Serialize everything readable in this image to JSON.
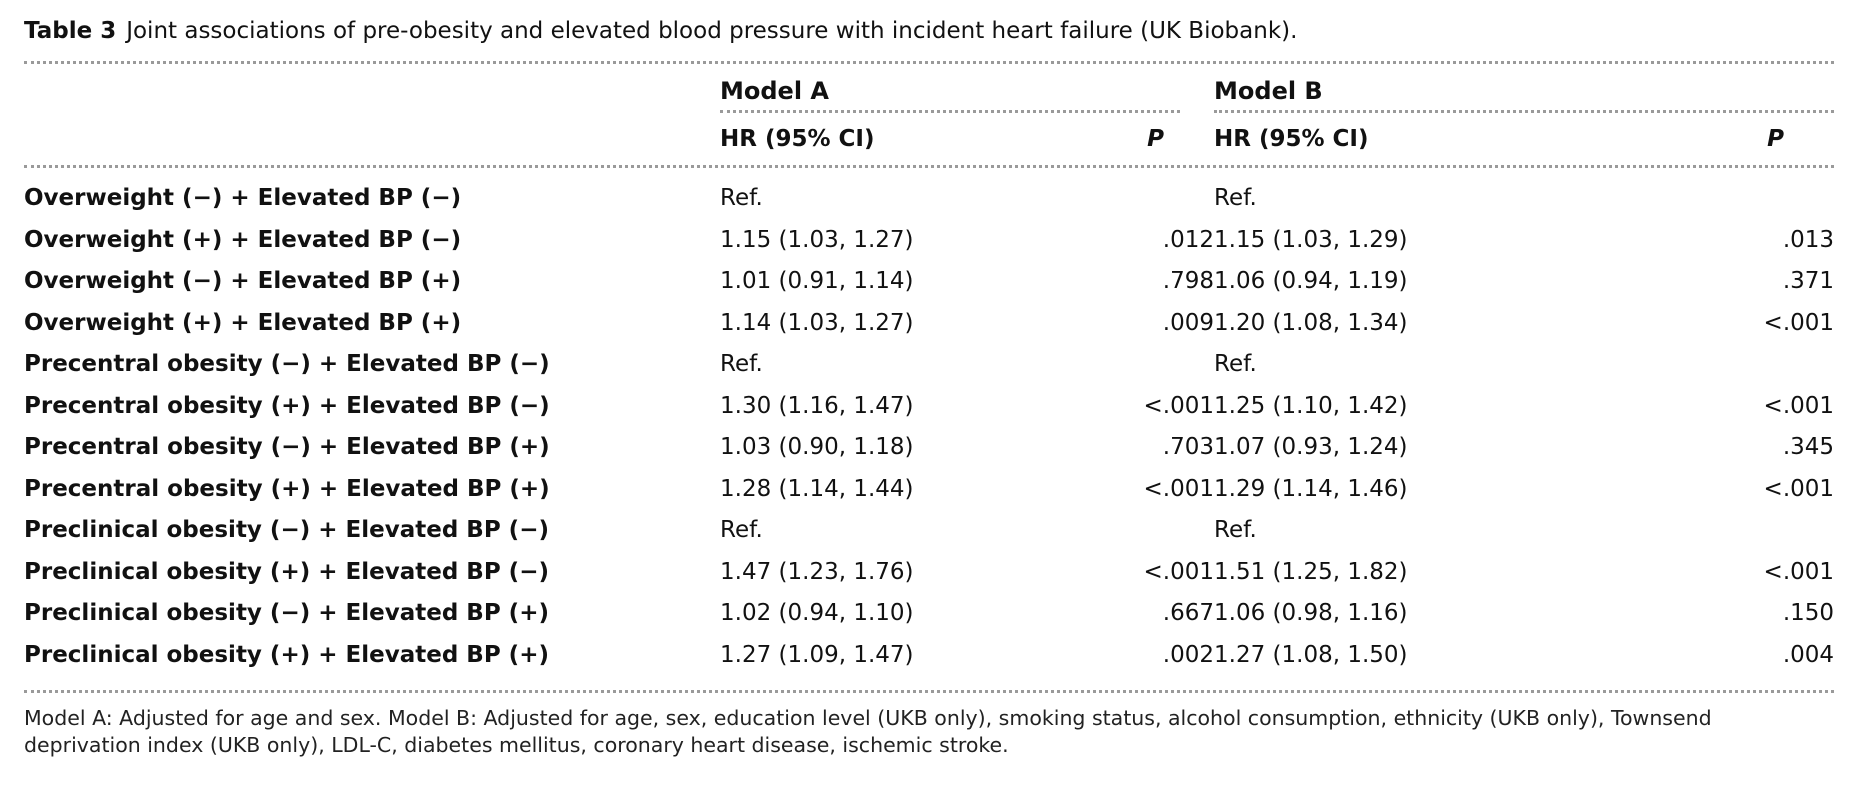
{
  "caption": {
    "label": "Table 3",
    "text": "Joint associations of pre-obesity and elevated blood pressure with incident heart failure (UK Biobank)."
  },
  "header": {
    "model_a": "Model A",
    "model_b": "Model B",
    "hr_a": "HR (95% CI)",
    "p_a": "P",
    "hr_b": "HR (95% CI)",
    "p_b": "P"
  },
  "rows": [
    {
      "label": "Overweight (−) + Elevated BP (−)",
      "hr_a": "Ref.",
      "p_a": "",
      "hr_b": "Ref.",
      "p_b": ""
    },
    {
      "label": "Overweight (+) + Elevated BP (−)",
      "hr_a": "1.15 (1.03, 1.27)",
      "p_a": ".012",
      "hr_b": "1.15 (1.03, 1.29)",
      "p_b": ".013"
    },
    {
      "label": "Overweight (−) + Elevated BP (+)",
      "hr_a": "1.01 (0.91, 1.14)",
      "p_a": ".798",
      "hr_b": "1.06 (0.94, 1.19)",
      "p_b": ".371"
    },
    {
      "label": "Overweight (+) + Elevated BP (+)",
      "hr_a": "1.14 (1.03, 1.27)",
      "p_a": ".009",
      "hr_b": "1.20 (1.08, 1.34)",
      "p_b": "<.001"
    },
    {
      "label": "Precentral obesity (−) + Elevated BP (−)",
      "hr_a": "Ref.",
      "p_a": "",
      "hr_b": "Ref.",
      "p_b": ""
    },
    {
      "label": "Precentral obesity (+) + Elevated BP (−)",
      "hr_a": "1.30 (1.16, 1.47)",
      "p_a": "<.001",
      "hr_b": "1.25 (1.10, 1.42)",
      "p_b": "<.001"
    },
    {
      "label": "Precentral obesity (−) + Elevated BP (+)",
      "hr_a": "1.03 (0.90, 1.18)",
      "p_a": ".703",
      "hr_b": "1.07 (0.93, 1.24)",
      "p_b": ".345"
    },
    {
      "label": "Precentral obesity (+) + Elevated BP (+)",
      "hr_a": "1.28 (1.14, 1.44)",
      "p_a": "<.001",
      "hr_b": "1.29 (1.14, 1.46)",
      "p_b": "<.001"
    },
    {
      "label": "Preclinical obesity (−) + Elevated BP (−)",
      "hr_a": "Ref.",
      "p_a": "",
      "hr_b": "Ref.",
      "p_b": ""
    },
    {
      "label": "Preclinical obesity (+) + Elevated BP (−)",
      "hr_a": "1.47 (1.23, 1.76)",
      "p_a": "<.001",
      "hr_b": "1.51 (1.25, 1.82)",
      "p_b": "<.001"
    },
    {
      "label": "Preclinical obesity (−) + Elevated BP (+)",
      "hr_a": "1.02 (0.94, 1.10)",
      "p_a": ".667",
      "hr_b": "1.06 (0.98, 1.16)",
      "p_b": ".150"
    },
    {
      "label": "Preclinical obesity (+) + Elevated BP (+)",
      "hr_a": "1.27 (1.09, 1.47)",
      "p_a": ".002",
      "hr_b": "1.27 (1.08, 1.50)",
      "p_b": ".004"
    }
  ],
  "footnote": "Model A: Adjusted for age and sex. Model B: Adjusted for age, sex, education level (UKB only), smoking status, alcohol consumption, ethnicity (UKB only), Townsend deprivation index (UKB only), LDL-C, diabetes mellitus, coronary heart disease, ischemic stroke."
}
